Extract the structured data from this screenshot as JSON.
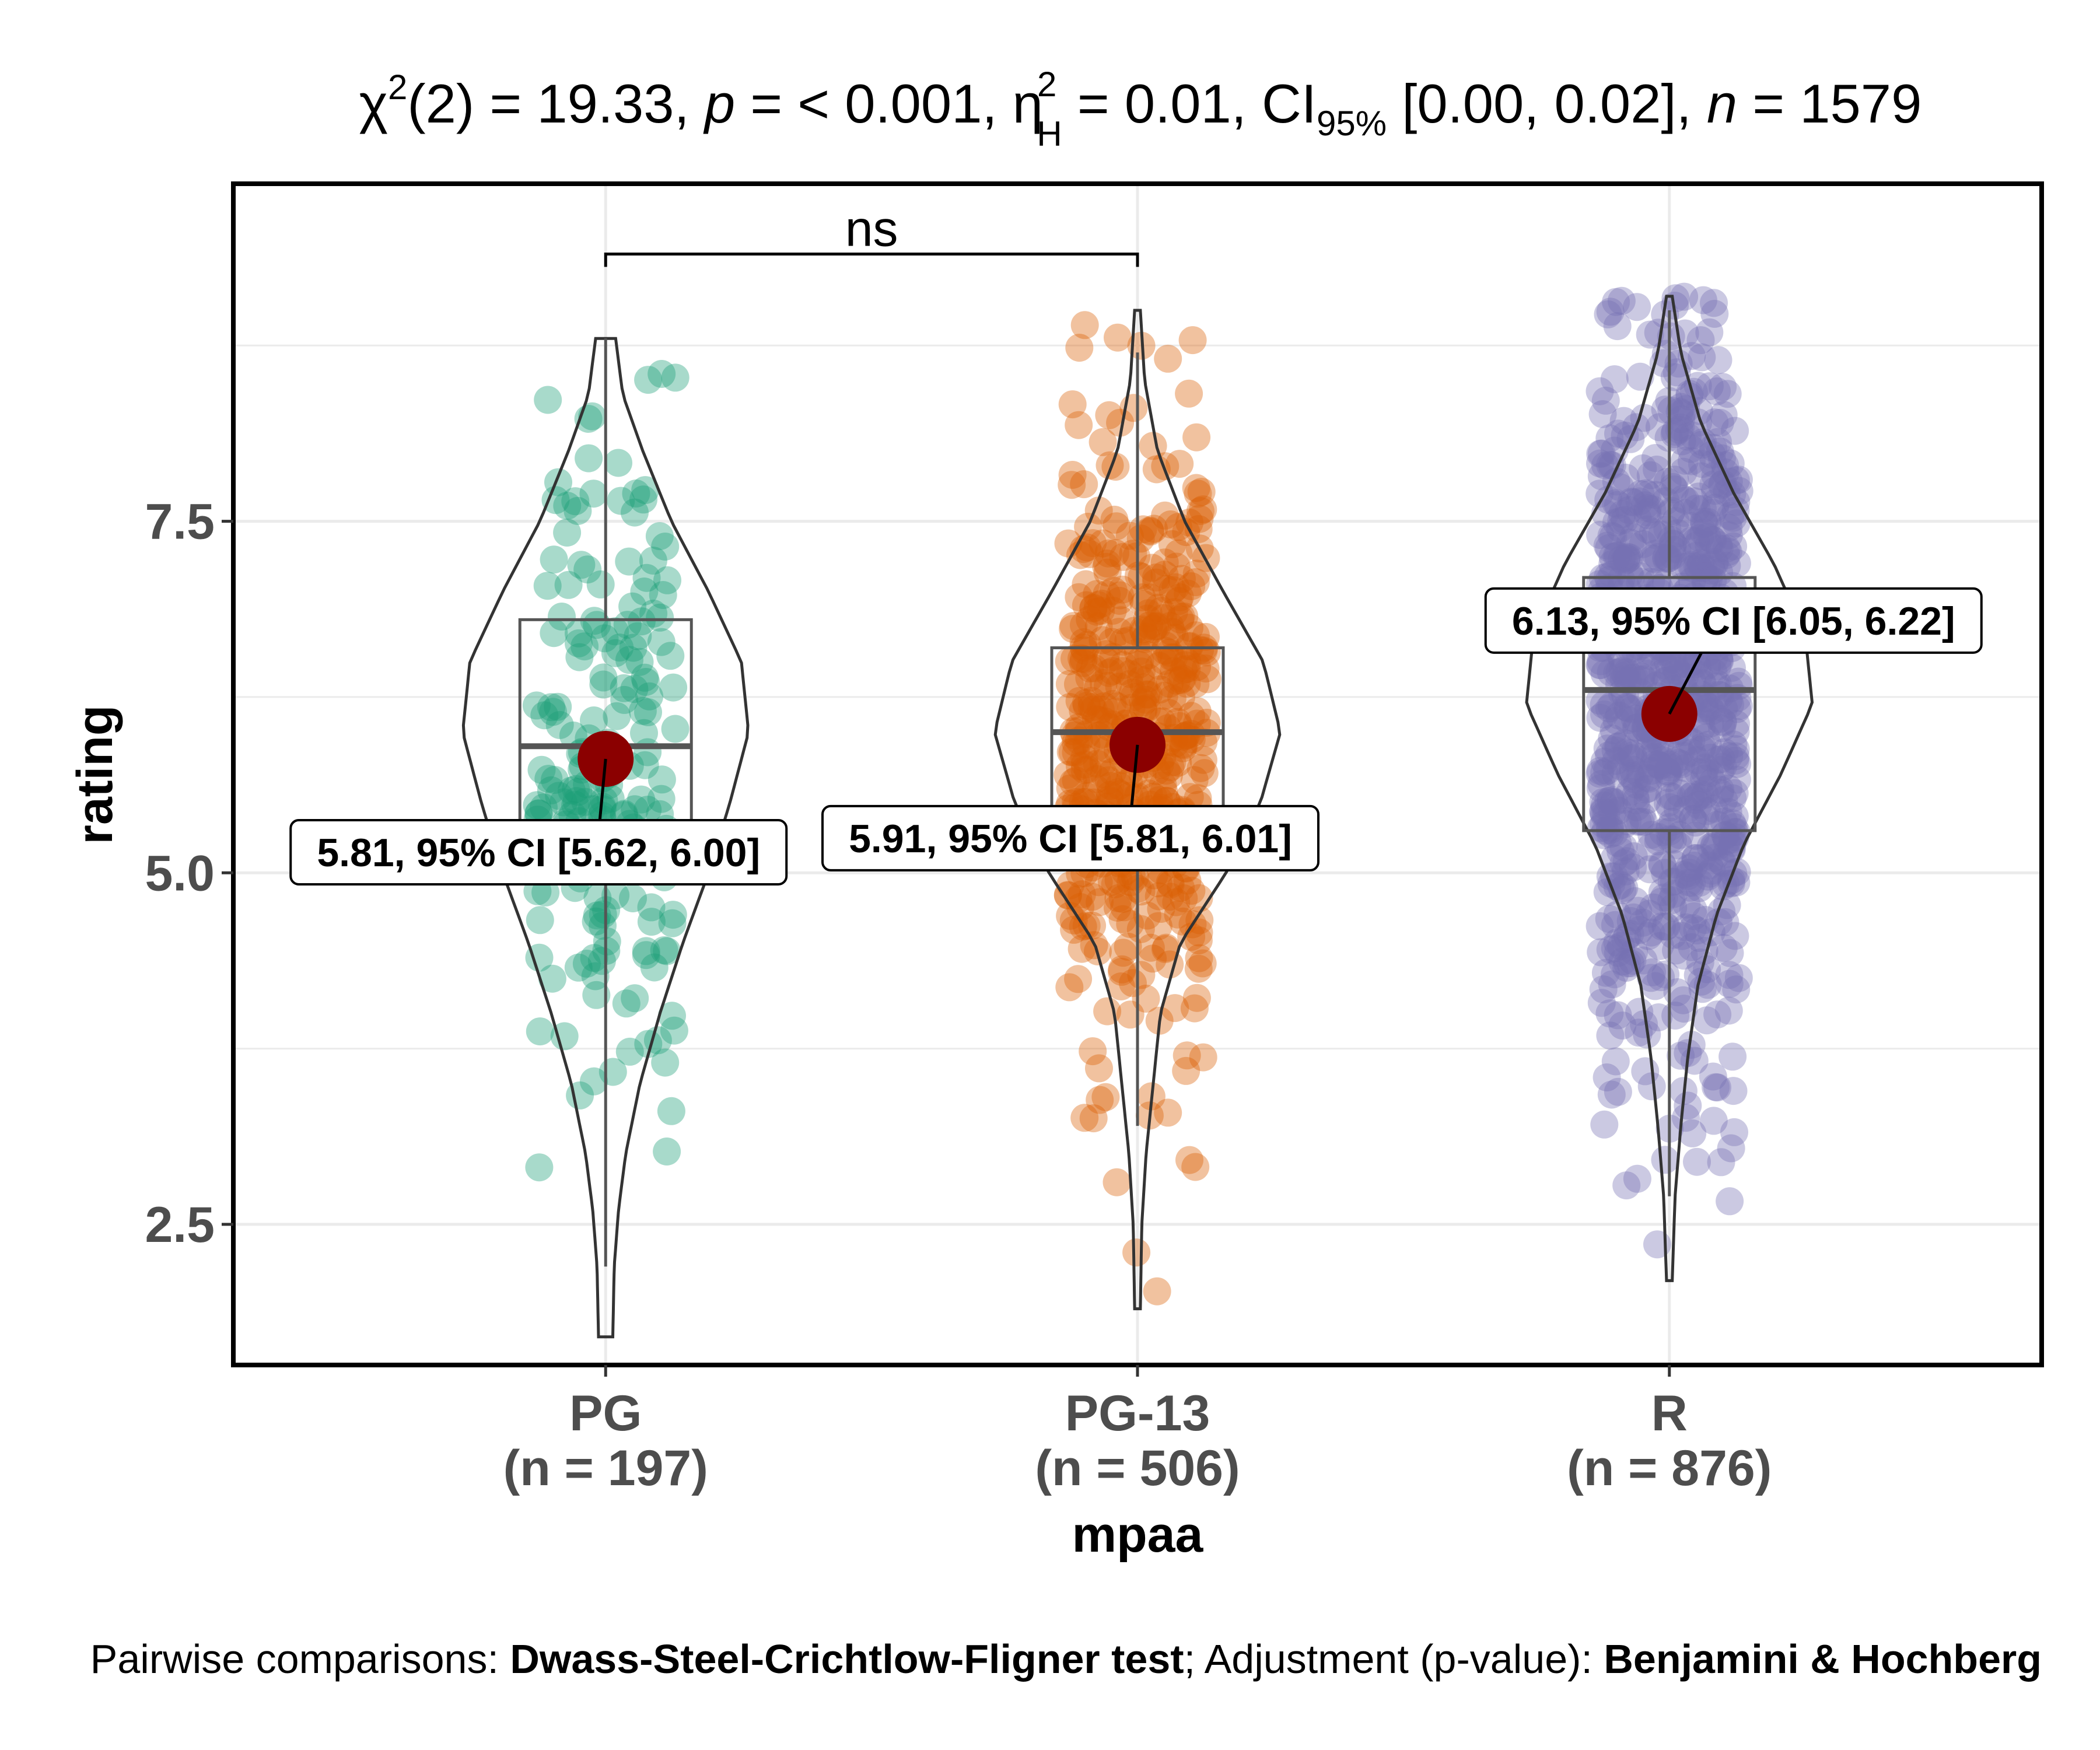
{
  "chart_data": {
    "type": "violin-box-scatter",
    "title": {
      "stat_symbol": "χ",
      "stat_sup": "2",
      "stat_df_and_value": "(2) = 19.33, ",
      "p_symbol": "p",
      "p_value": " = < 0.001, ",
      "effect_symbol": "η",
      "effect_sup": "2",
      "effect_sub": "H",
      "effect_value": " = 0.01, CI",
      "ci_sub": "95%",
      "ci_value": " [0.00, 0.02], ",
      "n_symbol": "n",
      "n_value": " = 1579"
    },
    "xlabel": "mpaa",
    "ylabel": "rating",
    "ylim": [
      1.5,
      9.9
    ],
    "yticks": [
      {
        "value": 2.5,
        "label": "2.5"
      },
      {
        "value": 5.0,
        "label": "5.0"
      },
      {
        "value": 7.5,
        "label": "7.5"
      }
    ],
    "grid": true,
    "groups": [
      {
        "name": "PG",
        "n_label": "(n = 197)",
        "color": "#1b9e77",
        "n": 197,
        "mean": 5.81,
        "mean_label": "5.81, 95% CI [5.62, 6.00]",
        "box": {
          "q1": 5.1,
          "median": 5.9,
          "q3": 6.8,
          "whisker_low": 2.2,
          "whisker_high": 8.8
        },
        "range": [
          1.7,
          8.8
        ],
        "density": [
          [
            1.7,
            0.05
          ],
          [
            2.2,
            0.06
          ],
          [
            2.6,
            0.09
          ],
          [
            3.0,
            0.14
          ],
          [
            3.5,
            0.24
          ],
          [
            4.0,
            0.38
          ],
          [
            4.5,
            0.54
          ],
          [
            5.0,
            0.72
          ],
          [
            5.5,
            0.87
          ],
          [
            6.0,
            1.0
          ],
          [
            6.5,
            0.95
          ],
          [
            7.0,
            0.72
          ],
          [
            7.5,
            0.46
          ],
          [
            8.0,
            0.26
          ],
          [
            8.4,
            0.12
          ],
          [
            8.8,
            0.07
          ]
        ]
      },
      {
        "name": "PG-13",
        "n_label": "(n = 506)",
        "color": "#d95f02",
        "n": 506,
        "mean": 5.91,
        "mean_label": "5.91, 95% CI [5.81, 6.01]",
        "box": {
          "q1": 5.2,
          "median": 6.0,
          "q3": 6.6,
          "whisker_low": 3.2,
          "whisker_high": 8.7
        },
        "range": [
          1.9,
          9.0
        ],
        "density": [
          [
            1.9,
            0.02
          ],
          [
            2.5,
            0.03
          ],
          [
            3.0,
            0.06
          ],
          [
            3.5,
            0.11
          ],
          [
            4.0,
            0.16
          ],
          [
            4.5,
            0.3
          ],
          [
            5.0,
            0.62
          ],
          [
            5.5,
            0.86
          ],
          [
            6.0,
            1.0
          ],
          [
            6.5,
            0.88
          ],
          [
            7.0,
            0.6
          ],
          [
            7.5,
            0.33
          ],
          [
            8.0,
            0.14
          ],
          [
            8.5,
            0.05
          ],
          [
            9.0,
            0.02
          ]
        ]
      },
      {
        "name": "R",
        "n_label": "(n = 876)",
        "color": "#7570b3",
        "n": 876,
        "mean": 6.13,
        "mean_label": "6.13, 95% CI [6.05, 6.22]",
        "box": {
          "q1": 5.3,
          "median": 6.3,
          "q3": 7.1,
          "whisker_low": 2.7,
          "whisker_high": 9.0
        },
        "range": [
          2.1,
          9.1
        ],
        "density": [
          [
            2.1,
            0.02
          ],
          [
            2.7,
            0.04
          ],
          [
            3.2,
            0.08
          ],
          [
            3.7,
            0.13
          ],
          [
            4.2,
            0.2
          ],
          [
            4.7,
            0.33
          ],
          [
            5.2,
            0.52
          ],
          [
            5.7,
            0.78
          ],
          [
            6.2,
            1.0
          ],
          [
            6.7,
            0.95
          ],
          [
            7.2,
            0.73
          ],
          [
            7.7,
            0.45
          ],
          [
            8.2,
            0.22
          ],
          [
            8.7,
            0.08
          ],
          [
            9.1,
            0.02
          ]
        ]
      }
    ],
    "comparisons": [
      {
        "group1": "PG",
        "group2": "PG-13",
        "label": "ns",
        "y": 9.4
      }
    ],
    "caption": {
      "prefix": "Pairwise comparisons: ",
      "test": "Dwass-Steel-Crichtlow-Fligner test",
      "middle": "; Adjustment (p-value): ",
      "adjustment": "Benjamini & Hochberg"
    }
  }
}
